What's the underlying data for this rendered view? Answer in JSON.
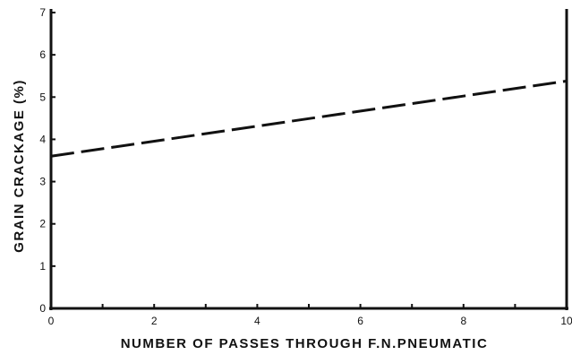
{
  "chart_data": {
    "type": "line",
    "title": "",
    "xlabel": "NUMBER OF PASSES THROUGH F.N.PNEUMATIC",
    "ylabel": "GRAIN CRACKAGE (%)",
    "xlim": [
      0,
      10
    ],
    "ylim": [
      0,
      7
    ],
    "x_ticks": [
      0,
      1,
      2,
      3,
      4,
      5,
      6,
      7,
      8,
      9,
      10
    ],
    "x_tick_labels": [
      "0",
      "2",
      "4",
      "6",
      "8",
      "10"
    ],
    "x_tick_label_values": [
      0,
      2,
      4,
      6,
      8,
      10
    ],
    "y_ticks": [
      0,
      1,
      2,
      3,
      4,
      5,
      6,
      7
    ],
    "y_tick_labels": [
      "0",
      "1",
      "2",
      "3",
      "4",
      "5",
      "6",
      "7"
    ],
    "grid": false,
    "series": [
      {
        "x": [
          0,
          10
        ],
        "values": [
          3.6,
          5.38
        ],
        "line_style": "dashed",
        "color": "#111111"
      }
    ]
  }
}
